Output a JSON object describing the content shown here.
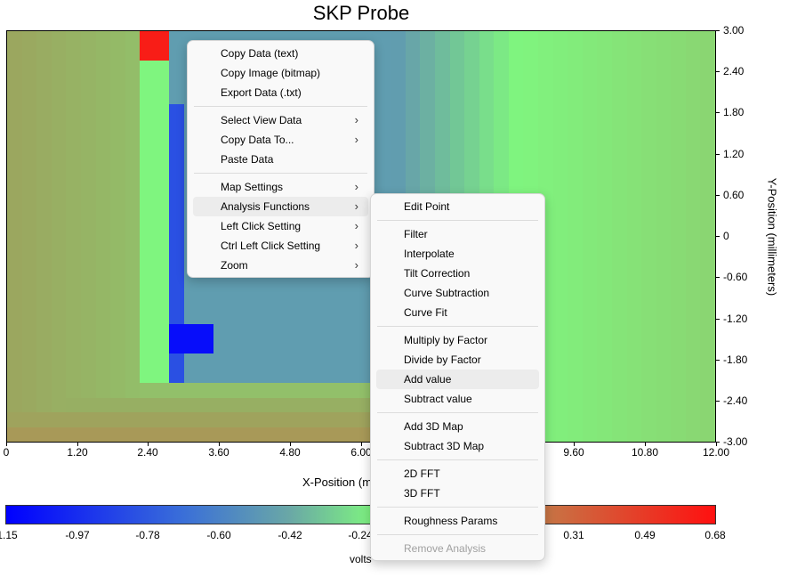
{
  "window": {
    "title": "SKP Probe"
  },
  "axes": {
    "x_label": "X-Position (m",
    "y_label": "Y-Position (millimeters)",
    "x_ticks": [
      "0",
      "1.20",
      "2.40",
      "3.60",
      "4.80",
      "6.00",
      "9.60",
      "10.80",
      "12.00"
    ],
    "y_ticks": [
      "3.00",
      "2.40",
      "1.80",
      "1.20",
      "0.60",
      "0",
      "-0.60",
      "-1.20",
      "-1.80",
      "-2.40",
      "-3.00"
    ]
  },
  "colorbar": {
    "ticks": [
      "1.15",
      "-0.97",
      "-0.78",
      "-0.60",
      "-0.42",
      "-0.24",
      "0.31",
      "0.49",
      "0.68"
    ],
    "unit": "volts",
    "colors": [
      "#0000ff",
      "#3a6fd8",
      "#6aa8a6",
      "#7ff57f",
      "#9aa860",
      "#c47a48",
      "#ff1010"
    ]
  },
  "context_menu": {
    "items": [
      {
        "label": "Copy Data (text)"
      },
      {
        "label": "Copy Image (bitmap)"
      },
      {
        "label": "Export Data (.txt)"
      },
      {
        "label": "Select View Data",
        "submenu": true
      },
      {
        "label": "Copy Data To...",
        "submenu": true
      },
      {
        "label": "Paste Data"
      },
      {
        "label": "Map Settings",
        "submenu": true
      },
      {
        "label": "Analysis Functions",
        "submenu": true,
        "highlighted": true
      },
      {
        "label": "Left Click Setting",
        "submenu": true
      },
      {
        "label": "Ctrl Left Click Setting",
        "submenu": true
      },
      {
        "label": "Zoom",
        "submenu": true
      }
    ]
  },
  "analysis_submenu": {
    "items": [
      {
        "label": "Edit Point"
      },
      {
        "label": "Filter"
      },
      {
        "label": "Interpolate"
      },
      {
        "label": "Tilt Correction"
      },
      {
        "label": "Curve Subtraction"
      },
      {
        "label": "Curve Fit"
      },
      {
        "label": "Multiply by Factor"
      },
      {
        "label": "Divide by Factor"
      },
      {
        "label": "Add value",
        "highlighted": true
      },
      {
        "label": "Subtract value"
      },
      {
        "label": "Add 3D Map"
      },
      {
        "label": "Subtract 3D Map"
      },
      {
        "label": "2D FFT"
      },
      {
        "label": "3D FFT"
      },
      {
        "label": "Roughness Params"
      },
      {
        "label": "Remove Analysis",
        "disabled": true
      }
    ]
  }
}
